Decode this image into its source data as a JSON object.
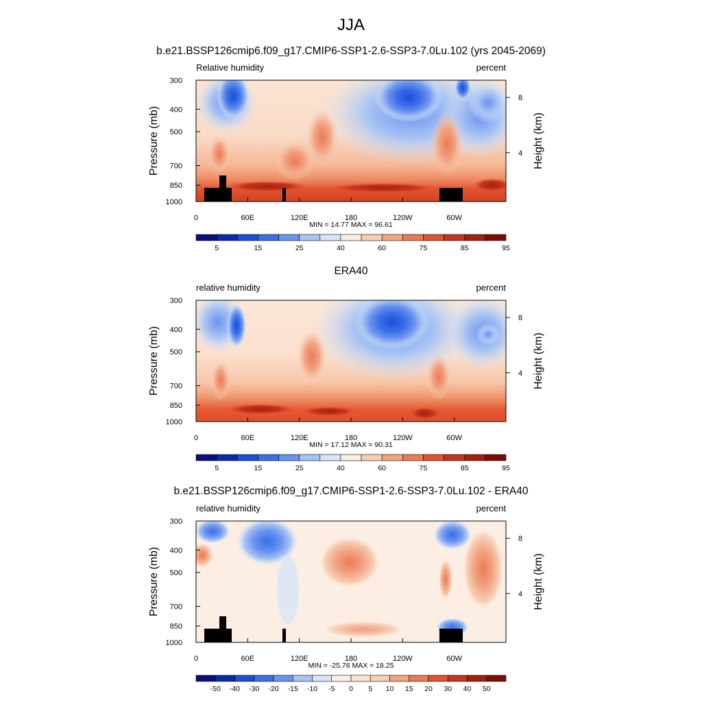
{
  "figure": {
    "title": "JJA"
  },
  "chart_data": [
    {
      "type": "heatmap",
      "title": "b.e21.BSSP126cmip6.f09_g17.CMIP6-SSP1-2.6-SSP3-7.0Lu.102 (yrs 2045-2069)",
      "left_label": "Relative humidity",
      "right_label": "percent",
      "ylabel": "Pressure (mb)",
      "y2label": "Height (km)",
      "x_ticks": [
        "0",
        "60E",
        "120E",
        "180",
        "120W",
        "60W"
      ],
      "y_ticks": [
        "300",
        "400",
        "500",
        "700",
        "850",
        "1000"
      ],
      "y2_ticks": [
        "8",
        "4"
      ],
      "stats": "MIN =  14.77  MAX =  96.61",
      "min": 14.77,
      "max": 96.61,
      "colorbar_labels": [
        "5",
        "15",
        "25",
        "40",
        "60",
        "75",
        "85",
        "95"
      ],
      "colorbar_colors": [
        "#0a0f80",
        "#0b2aa8",
        "#1c4ed8",
        "#3a6fe8",
        "#6b94ef",
        "#a9c4f3",
        "#d6e6f8",
        "#fdeee4",
        "#f8cfb5",
        "#f2a483",
        "#ec7a56",
        "#e2532f",
        "#c6341e",
        "#a3200f",
        "#7a0e07"
      ],
      "notes": "zonal band: dry (blue) 300-500 mb near 40E and 150W-120W and 70W; moist (red) 700-1000 mb; topography masked black near 15E-45E, 100E and 60W-75W"
    },
    {
      "type": "heatmap",
      "title": "ERA40",
      "left_label": "relative humidity",
      "right_label": "percent",
      "ylabel": "Pressure (mb)",
      "y2label": "Height (km)",
      "x_ticks": [
        "0",
        "60E",
        "120E",
        "180",
        "120W",
        "60W"
      ],
      "y_ticks": [
        "300",
        "400",
        "500",
        "700",
        "850",
        "1000"
      ],
      "y2_ticks": [
        "8",
        "4"
      ],
      "stats": "MIN =  17.12  MAX =  90.31",
      "min": 17.12,
      "max": 90.31,
      "colorbar_labels": [
        "5",
        "15",
        "25",
        "40",
        "60",
        "75",
        "85",
        "95"
      ],
      "colorbar_colors": [
        "#0a0f80",
        "#0b2aa8",
        "#1c4ed8",
        "#3a6fe8",
        "#6b94ef",
        "#a9c4f3",
        "#d6e6f8",
        "#fdeee4",
        "#f8cfb5",
        "#f2a483",
        "#ec7a56",
        "#e2532f",
        "#c6341e",
        "#a3200f",
        "#7a0e07"
      ]
    },
    {
      "type": "heatmap",
      "title": "b.e21.BSSP126cmip6.f09_g17.CMIP6-SSP1-2.6-SSP3-7.0Lu.102 - ERA40",
      "left_label": "relative humidity",
      "right_label": "percent",
      "ylabel": "Pressure (mb)",
      "y2label": "Height (km)",
      "x_ticks": [
        "0",
        "60E",
        "120E",
        "180",
        "120W",
        "60W"
      ],
      "y_ticks": [
        "300",
        "400",
        "500",
        "700",
        "850",
        "1000"
      ],
      "y2_ticks": [
        "8",
        "4"
      ],
      "stats": "MIN = -25.76  MAX =  18.25",
      "min": -25.76,
      "max": 18.25,
      "colorbar_labels": [
        "-50",
        "-40",
        "-30",
        "-20",
        "-15",
        "-10",
        "-5",
        "0",
        "5",
        "10",
        "15",
        "20",
        "30",
        "40",
        "50"
      ],
      "colorbar_colors": [
        "#0a0f80",
        "#0b2aa8",
        "#1c4ed8",
        "#3a6fe8",
        "#6b94ef",
        "#a9c4f3",
        "#d6e6f8",
        "#fdeee4",
        "#fde2d0",
        "#f8cfb5",
        "#f2a483",
        "#ec7a56",
        "#e2532f",
        "#c6341e",
        "#a3200f",
        "#7a0e07"
      ]
    }
  ]
}
